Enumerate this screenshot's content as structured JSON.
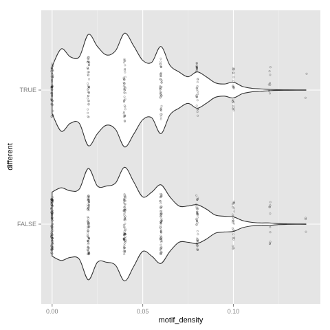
{
  "chart_data": {
    "type": "violin",
    "title": "",
    "xlabel": "motif_density",
    "ylabel": "different",
    "xlim": [
      -0.006,
      0.148
    ],
    "x_ticks": [
      {
        "value": 0.0,
        "label": "0.00"
      },
      {
        "value": 0.05,
        "label": "0.05"
      },
      {
        "value": 0.1,
        "label": "0.10"
      }
    ],
    "x_minor_ticks": [
      0.025,
      0.075,
      0.125
    ],
    "categories": [
      "TRUE",
      "FALSE"
    ],
    "orientation": "horizontal",
    "grid": true,
    "series": [
      {
        "category": "TRUE",
        "density": [
          [
            0.0,
            0.39
          ],
          [
            0.005,
            0.68
          ],
          [
            0.01,
            0.55
          ],
          [
            0.015,
            0.55
          ],
          [
            0.02,
            0.92
          ],
          [
            0.025,
            0.72
          ],
          [
            0.03,
            0.58
          ],
          [
            0.035,
            0.65
          ],
          [
            0.04,
            0.94
          ],
          [
            0.045,
            0.73
          ],
          [
            0.05,
            0.49
          ],
          [
            0.055,
            0.46
          ],
          [
            0.06,
            0.72
          ],
          [
            0.065,
            0.41
          ],
          [
            0.07,
            0.3
          ],
          [
            0.075,
            0.22
          ],
          [
            0.08,
            0.3
          ],
          [
            0.085,
            0.22
          ],
          [
            0.09,
            0.12
          ],
          [
            0.095,
            0.1
          ],
          [
            0.1,
            0.13
          ],
          [
            0.105,
            0.06
          ],
          [
            0.11,
            0.03
          ],
          [
            0.115,
            0.02
          ],
          [
            0.12,
            0.01
          ],
          [
            0.125,
            0.005
          ],
          [
            0.13,
            0.004
          ],
          [
            0.135,
            0.002
          ],
          [
            0.14,
            0.002
          ]
        ],
        "points": [
          {
            "x": 0.0,
            "n": 45,
            "spread": 0.48
          },
          {
            "x": 0.02,
            "n": 40,
            "spread": 0.55
          },
          {
            "x": 0.04,
            "n": 40,
            "spread": 0.55
          },
          {
            "x": 0.06,
            "n": 40,
            "spread": 0.52
          },
          {
            "x": 0.08,
            "n": 30,
            "spread": 0.46
          },
          {
            "x": 0.1,
            "n": 20,
            "spread": 0.36
          },
          {
            "x": 0.12,
            "n": 8,
            "spread": 0.38
          },
          {
            "x": 0.14,
            "n": 2,
            "spread": 0.52
          }
        ]
      },
      {
        "category": "FALSE",
        "density": [
          [
            0.0,
            0.53
          ],
          [
            0.005,
            0.6
          ],
          [
            0.01,
            0.55
          ],
          [
            0.015,
            0.58
          ],
          [
            0.02,
            0.92
          ],
          [
            0.025,
            0.63
          ],
          [
            0.03,
            0.63
          ],
          [
            0.035,
            0.68
          ],
          [
            0.04,
            0.94
          ],
          [
            0.045,
            0.7
          ],
          [
            0.05,
            0.45
          ],
          [
            0.055,
            0.53
          ],
          [
            0.06,
            0.65
          ],
          [
            0.065,
            0.45
          ],
          [
            0.07,
            0.3
          ],
          [
            0.075,
            0.3
          ],
          [
            0.08,
            0.32
          ],
          [
            0.085,
            0.25
          ],
          [
            0.09,
            0.15
          ],
          [
            0.095,
            0.13
          ],
          [
            0.1,
            0.12
          ],
          [
            0.105,
            0.06
          ],
          [
            0.11,
            0.03
          ],
          [
            0.115,
            0.02
          ],
          [
            0.12,
            0.02
          ],
          [
            0.125,
            0.008
          ],
          [
            0.13,
            0.004
          ],
          [
            0.135,
            0.003
          ],
          [
            0.14,
            0.003
          ]
        ],
        "points": [
          {
            "x": 0.0,
            "n": 80,
            "spread": 0.5
          },
          {
            "x": 0.02,
            "n": 70,
            "spread": 0.5
          },
          {
            "x": 0.04,
            "n": 70,
            "spread": 0.5
          },
          {
            "x": 0.06,
            "n": 60,
            "spread": 0.5
          },
          {
            "x": 0.08,
            "n": 40,
            "spread": 0.48
          },
          {
            "x": 0.1,
            "n": 25,
            "spread": 0.46
          },
          {
            "x": 0.12,
            "n": 10,
            "spread": 0.38
          },
          {
            "x": 0.14,
            "n": 3,
            "spread": 0.3
          }
        ]
      }
    ]
  },
  "colors": {
    "panel_background": "#e5e5e5",
    "grid_major": "#ffffff",
    "grid_minor": "#f2f2f2",
    "violin_fill": "#ffffff",
    "violin_outline": "#333333",
    "point_color": "#000000",
    "tick_text": "#7f7f7f",
    "axis_title": "#000000"
  }
}
